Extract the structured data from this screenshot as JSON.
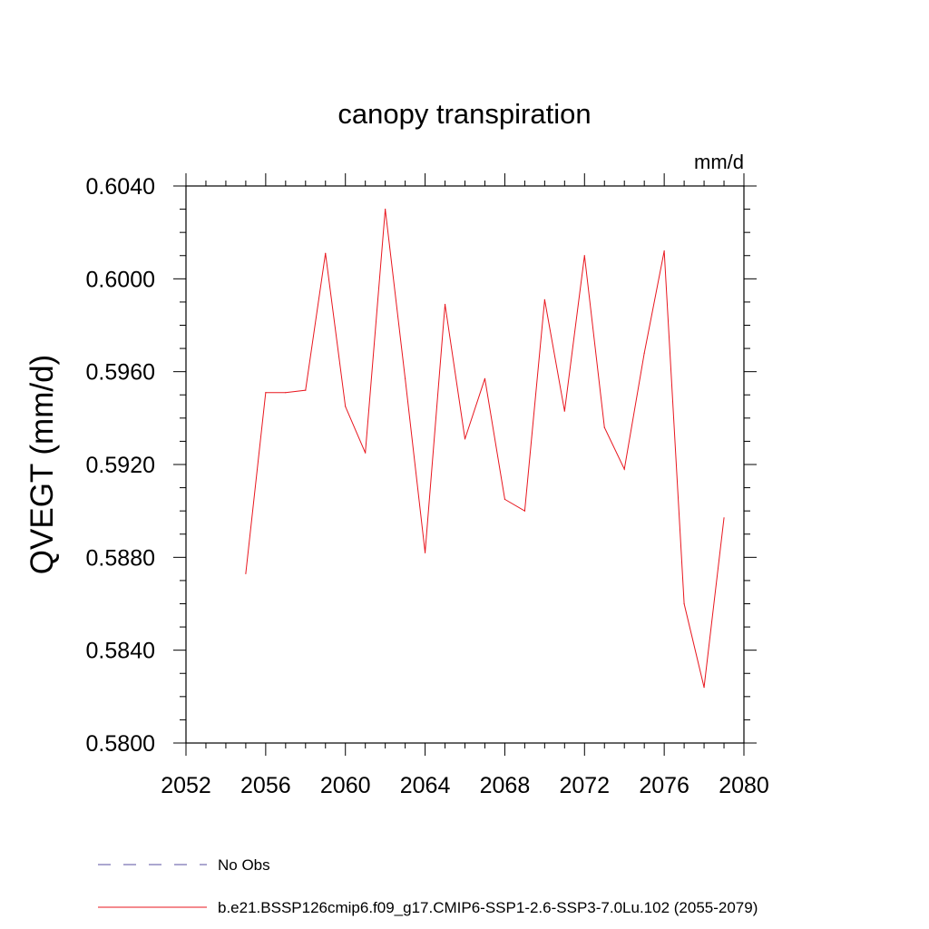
{
  "chart_data": {
    "type": "line",
    "title": "canopy transpiration",
    "units_label": "mm/d",
    "ylabel": "QVEGT  (mm/d)",
    "xlabel": "",
    "xlim": [
      2052,
      2080
    ],
    "ylim": [
      0.58,
      0.604
    ],
    "x_ticks": [
      2052,
      2056,
      2060,
      2064,
      2068,
      2072,
      2076,
      2080
    ],
    "x_tick_labels": [
      "2052",
      "2056",
      "2060",
      "2064",
      "2068",
      "2072",
      "2076",
      "2080"
    ],
    "y_ticks": [
      0.58,
      0.584,
      0.588,
      0.592,
      0.596,
      0.6,
      0.604
    ],
    "y_tick_labels": [
      "0.5800",
      "0.5840",
      "0.5880",
      "0.5920",
      "0.5960",
      "0.6000",
      "0.6040"
    ],
    "grid": false,
    "legend_position": "bottom",
    "series": [
      {
        "name": "b.e21.BSSP126cmip6.f09_g17.CMIP6-SSP1-2.6-SSP3-7.0Lu.102 (2055-2079)",
        "color": "#e8161e",
        "style": "solid",
        "x": [
          2055,
          2056,
          2057,
          2058,
          2059,
          2060,
          2061,
          2062,
          2063,
          2064,
          2065,
          2066,
          2067,
          2068,
          2069,
          2070,
          2071,
          2072,
          2073,
          2074,
          2075,
          2076,
          2077,
          2078,
          2079
        ],
        "y": [
          0.5873,
          0.5951,
          0.5951,
          0.5952,
          0.6011,
          0.5945,
          0.5925,
          0.603,
          0.5957,
          0.5882,
          0.5989,
          0.5931,
          0.5957,
          0.5905,
          0.59,
          0.5991,
          0.5943,
          0.601,
          0.5936,
          0.5918,
          0.5968,
          0.6012,
          0.586,
          0.5824,
          0.5897
        ]
      }
    ],
    "legend": [
      {
        "label": "No Obs",
        "color": "#5a4fa0",
        "style": "dashed"
      },
      {
        "label": "b.e21.BSSP126cmip6.f09_g17.CMIP6-SSP1-2.6-SSP3-7.0Lu.102 (2055-2079)",
        "color": "#e8161e",
        "style": "solid"
      }
    ]
  }
}
